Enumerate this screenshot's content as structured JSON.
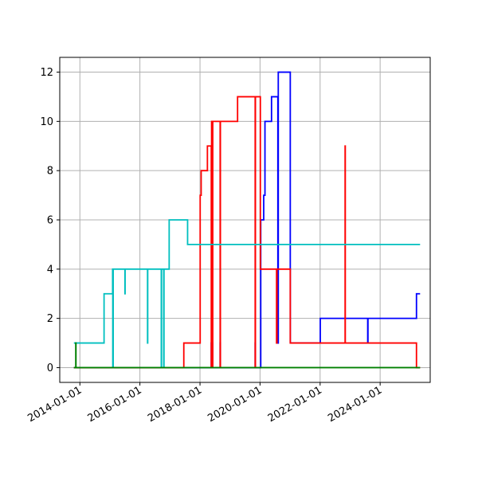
{
  "chart_data": {
    "type": "line",
    "title": "",
    "xlabel": "",
    "ylabel": "",
    "grid": true,
    "xlim": [
      "2013-05-01",
      "2025-09-01"
    ],
    "ylim": [
      -0.6,
      12.6
    ],
    "x_ticks": [
      "2014-01-01",
      "2016-01-01",
      "2018-01-01",
      "2020-01-01",
      "2022-01-01",
      "2024-01-01"
    ],
    "y_ticks": [
      0,
      2,
      4,
      6,
      8,
      10,
      12
    ],
    "series": [
      {
        "color": "#0000ff",
        "points": [
          [
            "2013-10-20",
            0
          ],
          [
            "2018-05-15",
            0
          ],
          [
            "2018-05-18",
            1
          ],
          [
            "2018-05-22",
            0
          ],
          [
            "2018-06-01",
            1
          ],
          [
            "2018-06-05",
            0
          ],
          [
            "2018-09-01",
            0
          ],
          [
            "2018-09-03",
            1
          ],
          [
            "2018-09-06",
            0
          ],
          [
            "2019-11-01",
            0
          ],
          [
            "2019-11-03",
            1
          ],
          [
            "2019-11-06",
            0
          ],
          [
            "2020-01-05",
            0
          ],
          [
            "2020-01-10",
            6
          ],
          [
            "2020-02-15",
            7
          ],
          [
            "2020-03-01",
            10
          ],
          [
            "2020-05-15",
            10
          ],
          [
            "2020-05-20",
            11
          ],
          [
            "2020-08-01",
            11
          ],
          [
            "2020-08-05",
            1
          ],
          [
            "2020-08-10",
            12
          ],
          [
            "2021-01-01",
            12
          ],
          [
            "2021-01-03",
            1
          ],
          [
            "2022-01-01",
            1
          ],
          [
            "2022-01-03",
            2
          ],
          [
            "2023-08-01",
            2
          ],
          [
            "2023-08-03",
            1
          ],
          [
            "2023-08-06",
            2
          ],
          [
            "2025-03-15",
            2
          ],
          [
            "2025-03-18",
            3
          ],
          [
            "2025-05-01",
            3
          ]
        ]
      },
      {
        "color": "#ff0000",
        "points": [
          [
            "2013-10-20",
            0
          ],
          [
            "2017-06-15",
            0
          ],
          [
            "2017-06-18",
            1
          ],
          [
            "2018-01-01",
            1
          ],
          [
            "2018-01-03",
            7
          ],
          [
            "2018-01-15",
            8
          ],
          [
            "2018-04-01",
            9
          ],
          [
            "2018-05-15",
            9
          ],
          [
            "2018-05-18",
            0
          ],
          [
            "2018-05-22",
            10
          ],
          [
            "2018-06-01",
            0
          ],
          [
            "2018-06-05",
            10
          ],
          [
            "2018-09-01",
            10
          ],
          [
            "2018-09-03",
            0
          ],
          [
            "2018-09-06",
            10
          ],
          [
            "2019-04-01",
            10
          ],
          [
            "2019-04-03",
            11
          ],
          [
            "2019-11-01",
            11
          ],
          [
            "2019-11-03",
            0
          ],
          [
            "2019-11-06",
            11
          ],
          [
            "2020-01-01",
            11
          ],
          [
            "2020-01-05",
            4
          ],
          [
            "2020-07-15",
            4
          ],
          [
            "2020-07-20",
            1
          ],
          [
            "2020-07-25",
            4
          ],
          [
            "2021-01-01",
            4
          ],
          [
            "2021-01-03",
            1
          ],
          [
            "2022-06-01",
            1
          ],
          [
            "2022-11-01",
            9
          ],
          [
            "2022-11-03",
            1
          ],
          [
            "2025-03-15",
            1
          ],
          [
            "2025-03-18",
            0
          ],
          [
            "2025-05-01",
            0
          ]
        ]
      },
      {
        "color": "#00bfbf",
        "points": [
          [
            "2013-10-20",
            1
          ],
          [
            "2014-10-20",
            1
          ],
          [
            "2014-10-22",
            3
          ],
          [
            "2015-02-01",
            3
          ],
          [
            "2015-02-03",
            4
          ],
          [
            "2015-02-05",
            0
          ],
          [
            "2015-02-10",
            4
          ],
          [
            "2015-07-01",
            4
          ],
          [
            "2015-07-03",
            3
          ],
          [
            "2015-07-05",
            4
          ],
          [
            "2016-04-01",
            4
          ],
          [
            "2016-04-03",
            1
          ],
          [
            "2016-04-05",
            4
          ],
          [
            "2016-09-15",
            4
          ],
          [
            "2016-09-17",
            0
          ],
          [
            "2016-09-20",
            4
          ],
          [
            "2016-10-15",
            4
          ],
          [
            "2016-10-17",
            0
          ],
          [
            "2016-10-20",
            4
          ],
          [
            "2016-12-20",
            4
          ],
          [
            "2016-12-22",
            6
          ],
          [
            "2017-08-01",
            6
          ],
          [
            "2017-08-03",
            5
          ],
          [
            "2025-05-01",
            5
          ]
        ]
      },
      {
        "color": "#008000",
        "points": [
          [
            "2013-10-20",
            0
          ],
          [
            "2013-11-10",
            0
          ],
          [
            "2013-11-12",
            1
          ],
          [
            "2013-11-14",
            0
          ],
          [
            "2025-05-01",
            0
          ]
        ]
      }
    ]
  }
}
